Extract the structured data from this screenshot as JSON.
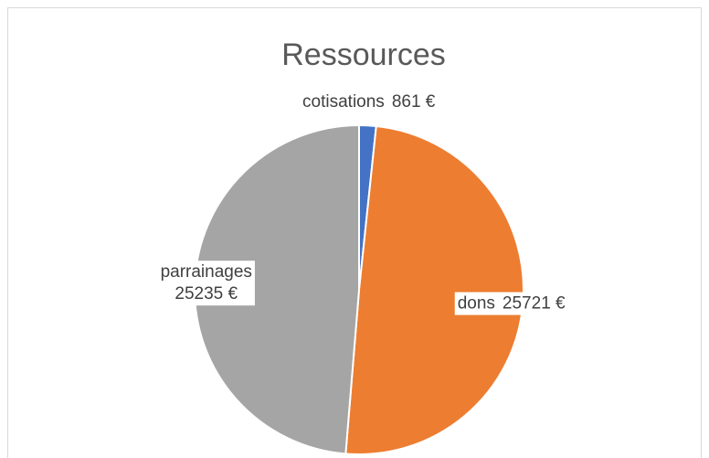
{
  "chart_data": {
    "type": "pie",
    "title": "Ressources",
    "categories": [
      "cotisations",
      "dons",
      "parrainages"
    ],
    "values": [
      861,
      25721,
      25235
    ],
    "value_labels": [
      "861 €",
      "25721 €",
      "25235 €"
    ],
    "colors": [
      "#4472c4",
      "#ed7d31",
      "#a5a5a5"
    ]
  }
}
